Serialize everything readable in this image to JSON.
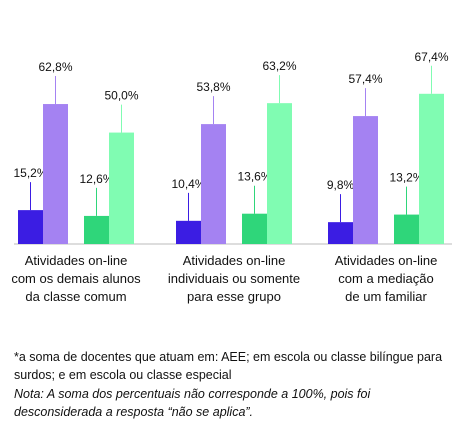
{
  "chart_data": {
    "type": "bar",
    "categories": [
      "Atividades on-line\ncom os demais alunos\nda classe comum",
      "Atividades on-line\nindividuais ou somente\npara esse grupo",
      "Atividades on-line\ncom a mediação\nde um familiar"
    ],
    "series": [
      {
        "color": "#3b1de3",
        "values": [
          15.2,
          10.4,
          9.8
        ],
        "value_labels": [
          "15,2%",
          "10,4%",
          "9,8%"
        ]
      },
      {
        "color": "#a482f2",
        "values": [
          62.8,
          53.8,
          57.4
        ],
        "value_labels": [
          "62,8%",
          "53,8%",
          "57,4%"
        ]
      },
      {
        "color": "#2fd67a",
        "values": [
          12.6,
          13.6,
          13.2
        ],
        "value_labels": [
          "12,6%",
          "13,6%",
          "13,2%"
        ]
      },
      {
        "color": "#80fcb2",
        "values": [
          50.0,
          63.2,
          67.4
        ],
        "value_labels": [
          "50,0%",
          "63,2%",
          "67,4%"
        ]
      }
    ],
    "ylim": [
      0,
      70
    ],
    "footnote": "*a soma de docentes que atuam em: AEE; em escola ou classe bilíngue para surdos; e em escola ou classe especial",
    "note": "Nota: A soma dos percentuais não corresponde a 100%, pois foi desconsiderada a resposta “não se aplica”."
  }
}
